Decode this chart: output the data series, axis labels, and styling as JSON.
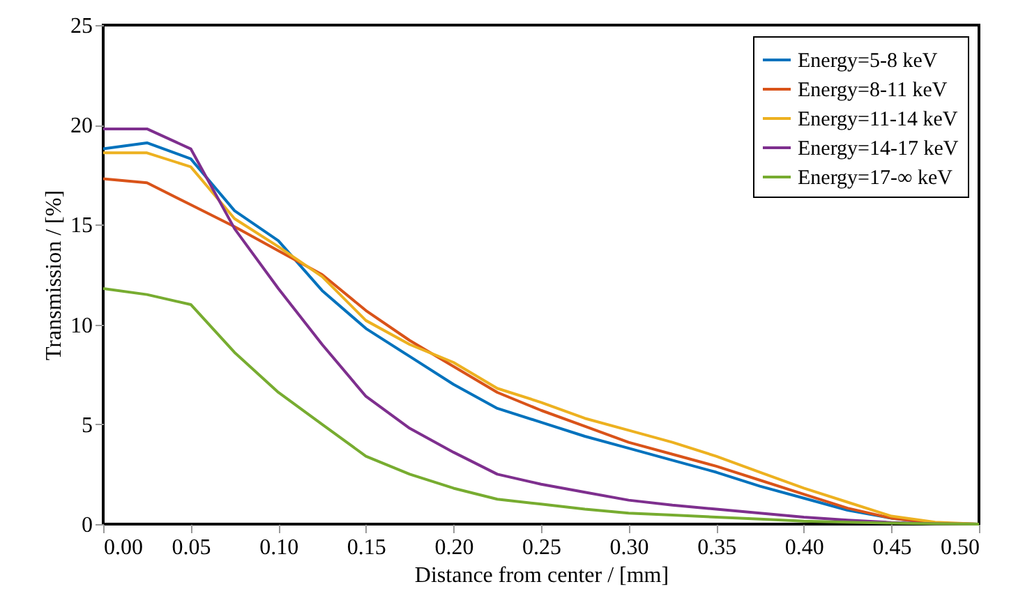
{
  "chart_data": {
    "type": "line",
    "xlabel": "Distance from center / [mm]",
    "ylabel": "Transmission / [%]",
    "x": [
      0,
      0.025,
      0.05,
      0.075,
      0.1,
      0.125,
      0.15,
      0.175,
      0.2,
      0.225,
      0.25,
      0.275,
      0.3,
      0.325,
      0.35,
      0.375,
      0.4,
      0.425,
      0.45,
      0.475,
      0.5
    ],
    "series": [
      {
        "name": "Energy=5-8 keV",
        "color": "#0072bd",
        "values": [
          18.8,
          19.1,
          18.3,
          15.7,
          14.2,
          11.7,
          9.8,
          8.4,
          7.0,
          5.8,
          5.1,
          4.4,
          3.8,
          3.2,
          2.6,
          1.9,
          1.3,
          0.7,
          0.3,
          0.05,
          0
        ]
      },
      {
        "name": "Energy=8-11 keV",
        "color": "#d95319",
        "values": [
          17.3,
          17.1,
          16.0,
          14.9,
          13.7,
          12.5,
          10.7,
          9.2,
          7.9,
          6.6,
          5.7,
          4.9,
          4.1,
          3.5,
          2.9,
          2.2,
          1.5,
          0.8,
          0.3,
          0.05,
          0
        ]
      },
      {
        "name": "Energy=11-14 keV",
        "color": "#edb120",
        "values": [
          18.6,
          18.6,
          17.9,
          15.3,
          13.9,
          12.4,
          10.2,
          9.0,
          8.1,
          6.8,
          6.1,
          5.3,
          4.7,
          4.1,
          3.4,
          2.6,
          1.8,
          1.1,
          0.4,
          0.1,
          0
        ]
      },
      {
        "name": "Energy=14-17 keV",
        "color": "#7e2f8e",
        "values": [
          19.8,
          19.8,
          18.8,
          14.8,
          11.8,
          9.0,
          6.4,
          4.8,
          3.6,
          2.5,
          2.0,
          1.6,
          1.2,
          0.95,
          0.75,
          0.55,
          0.35,
          0.2,
          0.08,
          0.02,
          0
        ]
      },
      {
        "name": "Energy=17-∞ keV",
        "color": "#77ac30",
        "values": [
          11.8,
          11.5,
          11.0,
          8.6,
          6.6,
          5.0,
          3.4,
          2.5,
          1.8,
          1.25,
          1.0,
          0.75,
          0.55,
          0.45,
          0.35,
          0.25,
          0.15,
          0.1,
          0.05,
          0.02,
          0
        ]
      }
    ],
    "xlim": [
      0,
      0.5
    ],
    "ylim": [
      0,
      25
    ],
    "xticks": [
      {
        "value": 0,
        "label": "0.00"
      },
      0.05,
      {
        "value": 0.1,
        "label": "0.10"
      },
      0.15,
      {
        "value": 0.2,
        "label": "0.20"
      },
      0.25,
      {
        "value": 0.3,
        "label": "0.30"
      },
      0.35,
      {
        "value": 0.4,
        "label": "0.40"
      },
      0.45,
      {
        "value": 0.5,
        "label": "0.50"
      }
    ],
    "yticks": [
      0,
      5,
      10,
      15,
      20,
      25
    ],
    "legend": "top right",
    "grid": false,
    "marker": "none",
    "line_style": "solid"
  }
}
